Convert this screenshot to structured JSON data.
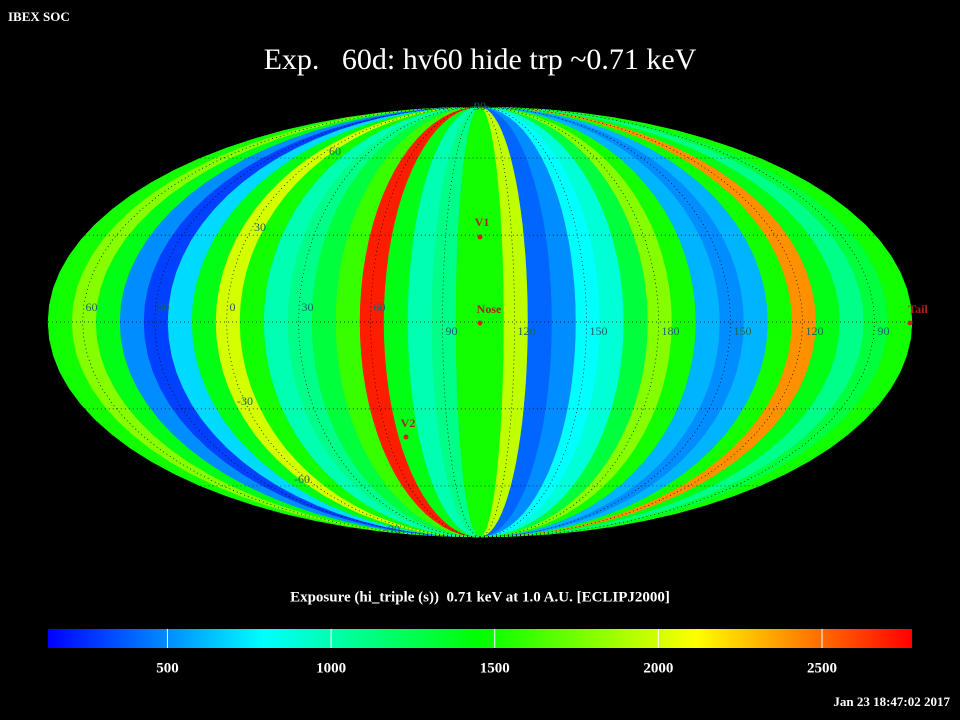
{
  "header": "IBEX SOC",
  "timestamp": "Jan 23 18:47:02 2017",
  "chart_data": {
    "type": "mollweide",
    "title": "Exp.   60d: hv60 hide trp ~0.71 keV",
    "colorbar_label": "Exposure (hi_triple (s))  0.71 keV at 1.0 A.U. [ECLIPJ2000]",
    "clim": [
      135,
      2775
    ],
    "cticks": [
      500,
      1000,
      1500,
      2000,
      2500
    ],
    "colormap": [
      "#0000ff",
      "#00ffff",
      "#00ff00",
      "#ffff00",
      "#ff0000"
    ],
    "values": [
      1500,
      1800,
      1400,
      500,
      300,
      700,
      1400,
      2000,
      1500,
      1000,
      1100,
      1300,
      1600,
      2700,
      1400,
      1000,
      1100,
      1500,
      1500,
      1950,
      400,
      500,
      800,
      900,
      1300,
      1800,
      1500,
      600,
      500,
      600,
      1500,
      2400,
      1400,
      1100,
      1300,
      1500
    ],
    "lon_labels": [
      "60",
      "30",
      "0",
      "30",
      "60",
      "90",
      "120",
      "150",
      "180",
      "150",
      "120",
      "90"
    ],
    "lat_labels": [
      "90",
      "60",
      "30",
      "-30",
      "-60",
      "-90"
    ],
    "markers": [
      {
        "label": "V1"
      },
      {
        "label": "Nose"
      },
      {
        "label": "V2"
      },
      {
        "label": "Tail"
      }
    ]
  }
}
